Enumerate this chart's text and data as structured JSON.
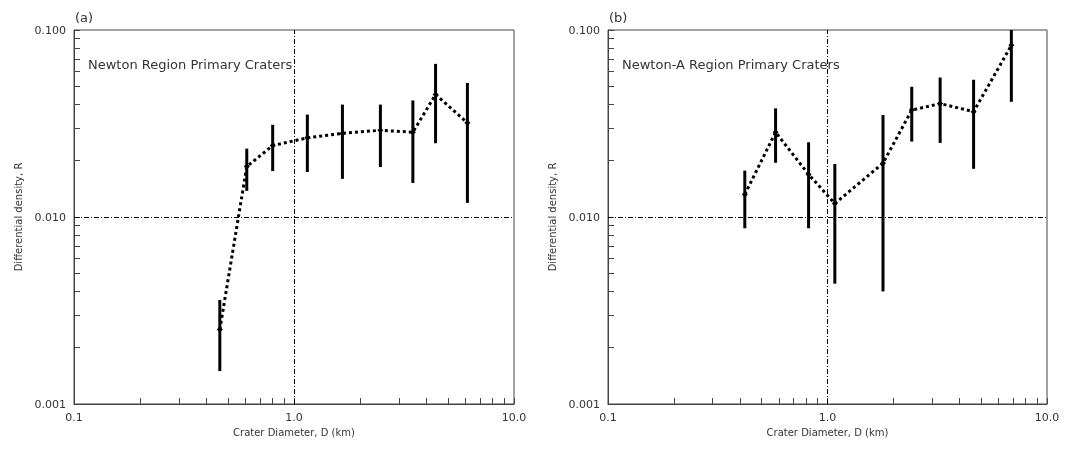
{
  "chart_data": [
    {
      "type": "line",
      "title": "(a)",
      "xlabel": "Crater Diameter, D (km)",
      "ylabel": "Differential density, R",
      "annotations": [
        "Newton Region Primary Craters"
      ],
      "x": [
        0.46,
        0.61,
        0.8,
        1.15,
        1.66,
        2.47,
        3.47,
        4.4,
        6.14
      ],
      "series": [
        {
          "color": "#000000",
          "values": [
            0.0025,
            0.0186,
            0.0241,
            0.0265,
            0.028,
            0.0291,
            0.0284,
            0.0452,
            0.0319
          ],
          "errors": [
            [
              0.0015,
              0.0036
            ],
            [
              0.0138,
              0.0232
            ],
            [
              0.0176,
              0.0311
            ],
            [
              0.0174,
              0.0353
            ],
            [
              0.016,
              0.0399
            ],
            [
              0.0185,
              0.0399
            ],
            [
              0.0152,
              0.042
            ],
            [
              0.0248,
              0.0659
            ],
            [
              0.0119,
              0.0521
            ]
          ]
        }
      ],
      "log": "xy",
      "xlim": [
        0.1,
        10
      ],
      "ylim": [
        0.001,
        0.1
      ],
      "xticks": [
        {
          "value": 0.1,
          "label": "0.1"
        },
        {
          "value": 0.2,
          "label": null
        },
        {
          "value": 0.3,
          "label": null
        },
        {
          "value": 0.4,
          "label": null
        },
        {
          "value": 0.5,
          "label": null
        },
        {
          "value": 0.6,
          "label": null
        },
        {
          "value": 0.7,
          "label": null
        },
        {
          "value": 0.8,
          "label": null
        },
        {
          "value": 0.9,
          "label": null
        },
        {
          "value": 1,
          "label": "1.0"
        },
        {
          "value": 2,
          "label": null
        },
        {
          "value": 3,
          "label": null
        },
        {
          "value": 4,
          "label": null
        },
        {
          "value": 5,
          "label": null
        },
        {
          "value": 6,
          "label": null
        },
        {
          "value": 7,
          "label": null
        },
        {
          "value": 8,
          "label": null
        },
        {
          "value": 9,
          "label": null
        },
        {
          "value": 10,
          "label": "10.0"
        }
      ],
      "yticks": [
        {
          "value": 0.001,
          "label": "0.001"
        },
        {
          "value": 0.002,
          "label": null
        },
        {
          "value": 0.003,
          "label": null
        },
        {
          "value": 0.004,
          "label": null
        },
        {
          "value": 0.005,
          "label": null
        },
        {
          "value": 0.006,
          "label": null
        },
        {
          "value": 0.007,
          "label": null
        },
        {
          "value": 0.008,
          "label": null
        },
        {
          "value": 0.009,
          "label": null
        },
        {
          "value": 0.01,
          "label": "0.010"
        },
        {
          "value": 0.02,
          "label": null
        },
        {
          "value": 0.03,
          "label": null
        },
        {
          "value": 0.04,
          "label": null
        },
        {
          "value": 0.05,
          "label": null
        },
        {
          "value": 0.06,
          "label": null
        },
        {
          "value": 0.07,
          "label": null
        },
        {
          "value": 0.08,
          "label": null
        },
        {
          "value": 0.09,
          "label": null
        },
        {
          "value": 0.1,
          "label": "0.100"
        }
      ],
      "ref_lines": [
        {
          "axis": "x",
          "value": 1,
          "color": "#000000",
          "line_style": "dashed"
        },
        {
          "axis": "y",
          "value": 0.01,
          "color": "#000000",
          "line_style": "dashed"
        }
      ],
      "marker": "diamond",
      "line_style": "dotted",
      "grid": false,
      "legend": false
    },
    {
      "type": "line",
      "title": "(b)",
      "xlabel": "Crater Diameter, D (km)",
      "ylabel": "Differential density, R",
      "annotations": [
        "Newton-A Region Primary Craters"
      ],
      "x": [
        0.42,
        0.58,
        0.82,
        1.08,
        1.79,
        2.42,
        3.26,
        4.63,
        6.88
      ],
      "series": [
        {
          "color": "#000000",
          "values": [
            0.0132,
            0.0284,
            0.0169,
            0.0118,
            0.0194,
            0.0373,
            0.0404,
            0.0366,
            0.0828
          ],
          "errors": [
            [
              0.0087,
              0.0177
            ],
            [
              0.0195,
              0.0381
            ],
            [
              0.0087,
              0.0251
            ],
            [
              0.0044,
              0.0192
            ],
            [
              0.004,
              0.0351
            ],
            [
              0.0253,
              0.0497
            ],
            [
              0.0249,
              0.0557
            ],
            [
              0.0181,
              0.0542
            ],
            [
              0.0413,
              0.1
            ]
          ]
        }
      ],
      "log": "xy",
      "xlim": [
        0.1,
        10
      ],
      "ylim": [
        0.001,
        0.1
      ],
      "xticks": [
        {
          "value": 0.1,
          "label": "0.1"
        },
        {
          "value": 0.2,
          "label": null
        },
        {
          "value": 0.3,
          "label": null
        },
        {
          "value": 0.4,
          "label": null
        },
        {
          "value": 0.5,
          "label": null
        },
        {
          "value": 0.6,
          "label": null
        },
        {
          "value": 0.7,
          "label": null
        },
        {
          "value": 0.8,
          "label": null
        },
        {
          "value": 0.9,
          "label": null
        },
        {
          "value": 1,
          "label": "1.0"
        },
        {
          "value": 2,
          "label": null
        },
        {
          "value": 3,
          "label": null
        },
        {
          "value": 4,
          "label": null
        },
        {
          "value": 5,
          "label": null
        },
        {
          "value": 6,
          "label": null
        },
        {
          "value": 7,
          "label": null
        },
        {
          "value": 8,
          "label": null
        },
        {
          "value": 9,
          "label": null
        },
        {
          "value": 10,
          "label": "10.0"
        }
      ],
      "yticks": [
        {
          "value": 0.001,
          "label": "0.001"
        },
        {
          "value": 0.002,
          "label": null
        },
        {
          "value": 0.003,
          "label": null
        },
        {
          "value": 0.004,
          "label": null
        },
        {
          "value": 0.005,
          "label": null
        },
        {
          "value": 0.006,
          "label": null
        },
        {
          "value": 0.007,
          "label": null
        },
        {
          "value": 0.008,
          "label": null
        },
        {
          "value": 0.009,
          "label": null
        },
        {
          "value": 0.01,
          "label": "0.010"
        },
        {
          "value": 0.02,
          "label": null
        },
        {
          "value": 0.03,
          "label": null
        },
        {
          "value": 0.04,
          "label": null
        },
        {
          "value": 0.05,
          "label": null
        },
        {
          "value": 0.06,
          "label": null
        },
        {
          "value": 0.07,
          "label": null
        },
        {
          "value": 0.08,
          "label": null
        },
        {
          "value": 0.09,
          "label": null
        },
        {
          "value": 0.1,
          "label": "0.100"
        }
      ],
      "ref_lines": [
        {
          "axis": "x",
          "value": 1,
          "color": "#000000",
          "line_style": "dashed"
        },
        {
          "axis": "y",
          "value": 0.01,
          "color": "#000000",
          "line_style": "dashed"
        }
      ],
      "marker": "diamond",
      "line_style": "dotted",
      "grid": false,
      "legend": false
    }
  ]
}
